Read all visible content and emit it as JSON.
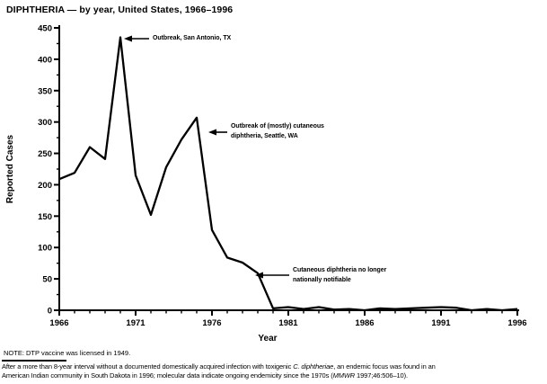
{
  "note": "NOTE: DTP vaccine was licensed in 1949.",
  "footer": {
    "lines": [
      [
        {
          "text": "After a more than 8-year interval without a documented domestically acquired infection with toxigenic ",
          "italic": false
        },
        {
          "text": "C. diphtheriae",
          "italic": true
        },
        {
          "text": ", an endemic focus was found in an",
          "italic": false
        }
      ],
      [
        {
          "text": "American Indian community in South Dakota in 1996; molecular data indicate ongoing endemicity since the 1970s (",
          "italic": false
        },
        {
          "text": "MMWR",
          "italic": true
        },
        {
          "text": " 1997;46:506–10).",
          "italic": false
        }
      ]
    ]
  },
  "chart_data": {
    "type": "line",
    "title": "DIPHTHERIA — by year, United States, 1966–1996",
    "xlabel": "Year",
    "ylabel": "Reported Cases",
    "x": [
      1966,
      1967,
      1968,
      1969,
      1970,
      1971,
      1972,
      1973,
      1974,
      1975,
      1976,
      1977,
      1978,
      1979,
      1980,
      1981,
      1982,
      1983,
      1984,
      1985,
      1986,
      1987,
      1988,
      1989,
      1990,
      1991,
      1992,
      1993,
      1994,
      1995,
      1996
    ],
    "values": [
      209,
      219,
      260,
      241,
      435,
      215,
      152,
      228,
      272,
      307,
      128,
      84,
      76,
      59,
      3,
      5,
      2,
      5,
      1,
      2,
      0,
      3,
      2,
      3,
      4,
      5,
      4,
      0,
      2,
      0,
      2
    ],
    "xlim": [
      1966,
      1996
    ],
    "ylim": [
      0,
      450
    ],
    "ytick_step": 50,
    "yminor_step": 25,
    "xtick_step": 5,
    "xminor_step": 1,
    "grid": false,
    "legend": "none",
    "line_color": "#000000",
    "background_color": "#ffffff",
    "annotations": [
      {
        "target_year": 1970,
        "target_value": 435,
        "lines": [
          "Outbreak, San Antonio, TX"
        ]
      },
      {
        "target_year": 1975,
        "target_value": 307,
        "lines": [
          "Outbreak of (mostly) cutaneous",
          "diphtheria, Seattle, WA"
        ]
      },
      {
        "target_year": 1979,
        "target_value": 59,
        "lines": [
          "Cutaneous diphtheria no longer",
          "nationally notifiable"
        ]
      }
    ]
  }
}
